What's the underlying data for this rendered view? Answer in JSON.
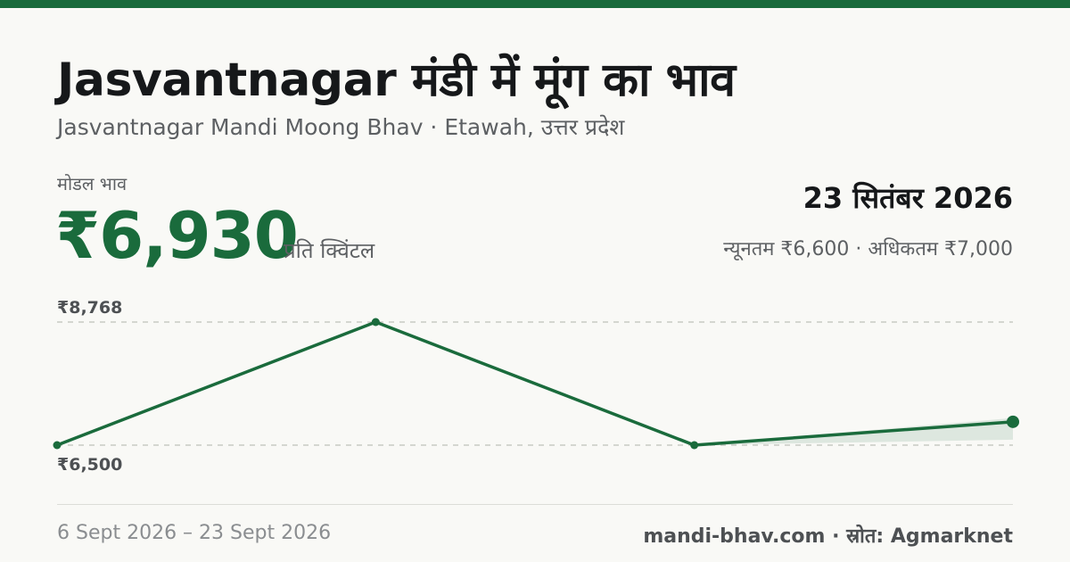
{
  "header": {
    "title": "Jasvantnagar मंडी में मूंग का भाव",
    "subtitle": "Jasvantnagar Mandi Moong Bhav · Etawah, उत्तर प्रदेश"
  },
  "price": {
    "label": "मोडल भाव",
    "value": "₹6,930",
    "unit": "प्रति क्विंटल"
  },
  "date_info": {
    "date": "23 सितंबर 2026",
    "range": "न्यूनतम ₹6,600 · अधिकतम ₹7,000"
  },
  "chart_data": {
    "type": "line",
    "x": [
      "6 Sept 2026",
      "",
      "",
      "23 Sept 2026"
    ],
    "values": [
      6500,
      8768,
      6500,
      6930
    ],
    "band": {
      "min": 6600,
      "max": 7000
    },
    "ylim": [
      6500,
      8768
    ],
    "y_tick_labels": [
      "₹8,768",
      "₹6,500"
    ],
    "grid": "dashed at min and max",
    "color": "#1a6b3c"
  },
  "footer": {
    "date_range": "6 Sept 2026 – 23 Sept 2026",
    "source": "mandi-bhav.com · स्रोत: Agmarknet"
  },
  "colors": {
    "accent": "#1a6b3c",
    "background": "#f9f9f6"
  }
}
